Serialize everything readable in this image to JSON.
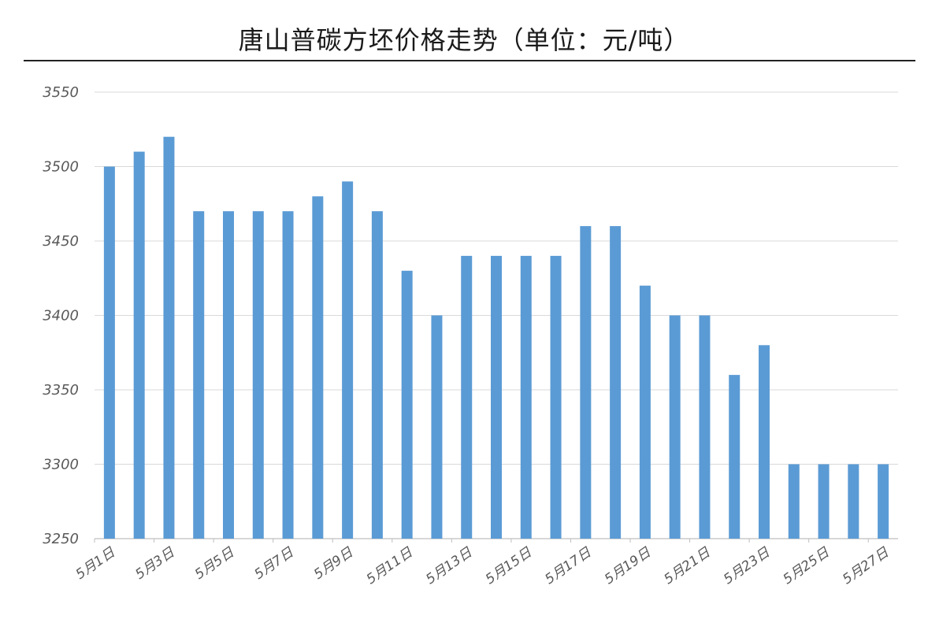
{
  "chart_data": {
    "type": "bar",
    "title": "唐山普碳方坯价格走势（单位：元/吨）",
    "xlabel": "",
    "ylabel": "",
    "ylim": [
      3250,
      3550
    ],
    "yticks": [
      3250,
      3300,
      3350,
      3400,
      3450,
      3500,
      3550
    ],
    "grid": true,
    "bar_color": "#5b9bd5",
    "categories": [
      "5月1日",
      "5月2日",
      "5月3日",
      "5月4日",
      "5月5日",
      "5月6日",
      "5月7日",
      "5月8日",
      "5月9日",
      "5月10日",
      "5月11日",
      "5月12日",
      "5月13日",
      "5月14日",
      "5月15日",
      "5月16日",
      "5月17日",
      "5月18日",
      "5月19日",
      "5月20日",
      "5月21日",
      "5月22日",
      "5月23日",
      "5月24日",
      "5月25日",
      "5月26日",
      "5月27日"
    ],
    "tick_labels": [
      "5月1日",
      "5月3日",
      "5月5日",
      "5月7日",
      "5月9日",
      "5月11日",
      "5月13日",
      "5月15日",
      "5月17日",
      "5月19日",
      "5月21日",
      "5月23日",
      "5月25日",
      "5月27日"
    ],
    "values": [
      3500,
      3510,
      3520,
      3470,
      3470,
      3470,
      3470,
      3480,
      3490,
      3470,
      3430,
      3400,
      3440,
      3440,
      3440,
      3440,
      3460,
      3460,
      3420,
      3400,
      3400,
      3360,
      3380,
      3300,
      3300,
      3300,
      3300
    ]
  }
}
